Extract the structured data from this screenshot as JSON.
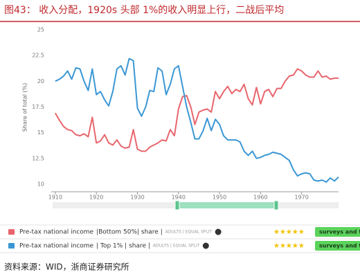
{
  "chart_data": {
    "type": "line",
    "title": "图43：  收入分配，1920s 头部 1%的收入明显上行，二战后平均",
    "ylabel": "Share of total (%)",
    "source": "资料来源：WID，浙商证券研究所",
    "x": [
      1910,
      1911,
      1912,
      1913,
      1914,
      1915,
      1916,
      1917,
      1918,
      1919,
      1920,
      1921,
      1922,
      1923,
      1924,
      1925,
      1926,
      1927,
      1928,
      1929,
      1930,
      1931,
      1932,
      1933,
      1934,
      1935,
      1936,
      1937,
      1938,
      1939,
      1940,
      1941,
      1942,
      1943,
      1944,
      1945,
      1946,
      1947,
      1948,
      1949,
      1950,
      1951,
      1952,
      1953,
      1954,
      1955,
      1956,
      1957,
      1958,
      1959,
      1960,
      1961,
      1962,
      1963,
      1964,
      1965,
      1966,
      1967,
      1968,
      1969,
      1970,
      1971,
      1972,
      1973,
      1974,
      1975,
      1976,
      1977,
      1978,
      1979
    ],
    "series": [
      {
        "name": "Pre-tax national income",
        "detail": "|Bottom 50%| share |",
        "tag": "ADULTS | EQUAL SPLIT",
        "button": "surveys and ta",
        "color": "#e8656c",
        "values": [
          16.9,
          16.2,
          15.6,
          15.3,
          15.2,
          14.8,
          14.7,
          14.9,
          14.6,
          16.5,
          14.0,
          14.2,
          14.8,
          14.0,
          13.8,
          14.3,
          13.7,
          13.5,
          13.6,
          15.3,
          13.4,
          13.2,
          13.2,
          13.6,
          13.8,
          14.0,
          14.3,
          14.2,
          15.3,
          14.7,
          17.3,
          18.5,
          18.6,
          17.5,
          15.8,
          17.0,
          17.2,
          17.3,
          17.0,
          19.0,
          18.3,
          19.0,
          19.5,
          18.8,
          19.2,
          19.0,
          19.7,
          18.3,
          17.7,
          19.4,
          17.8,
          19.0,
          19.2,
          18.5,
          19.3,
          19.3,
          20.0,
          20.5,
          20.6,
          21.2,
          21.0,
          20.6,
          20.4,
          20.4,
          21.0,
          20.4,
          20.5,
          20.2,
          20.3,
          20.3
        ]
      },
      {
        "name": "Pre-tax national income",
        "detail": "| Top 1% | share |",
        "tag": "ADULTS | EQUAL SPLIT",
        "button": "surveys and ta",
        "color": "#3a97d4",
        "values": [
          20.0,
          20.2,
          20.5,
          21.0,
          20.2,
          21.3,
          21.2,
          20.0,
          19.1,
          21.2,
          18.7,
          19.0,
          18.2,
          17.6,
          19.0,
          21.2,
          21.5,
          20.6,
          22.2,
          22.0,
          17.4,
          16.6,
          17.5,
          19.1,
          19.0,
          21.3,
          21.0,
          18.7,
          19.7,
          21.2,
          21.5,
          19.5,
          17.5,
          16.0,
          14.4,
          14.4,
          15.2,
          16.4,
          15.2,
          16.3,
          15.8,
          14.7,
          14.3,
          14.3,
          14.3,
          14.1,
          13.2,
          12.8,
          13.2,
          12.5,
          12.6,
          12.8,
          12.9,
          13.1,
          13.0,
          12.9,
          12.6,
          12.3,
          11.4,
          10.8,
          11.0,
          11.1,
          11.0,
          10.4,
          10.3,
          10.4,
          10.2,
          10.6,
          10.3,
          10.7
        ]
      }
    ],
    "xlim": [
      1909,
      1979
    ],
    "xticks": [
      1910,
      1920,
      1930,
      1940,
      1950,
      1960,
      1970
    ],
    "ylim": [
      10,
      25
    ],
    "yticks": [
      10,
      12.5,
      15,
      17.5,
      20,
      22.5,
      25
    ],
    "grid": false
  }
}
